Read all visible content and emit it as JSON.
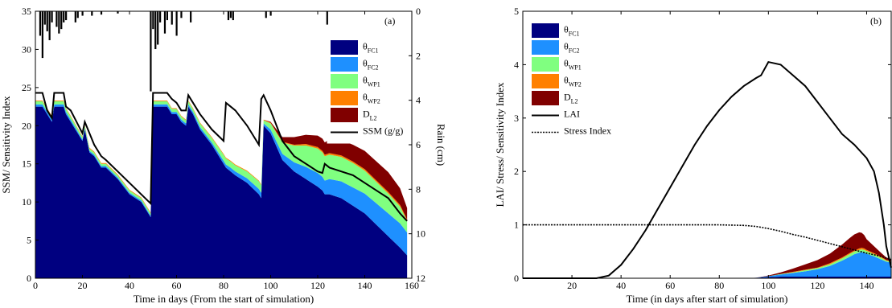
{
  "chart_data": [
    {
      "id": "a",
      "type": "area",
      "panel_label": "(a)",
      "xlabel": "Time in days (From the start of simulation)",
      "ylabel": "SSM/ Sensitivity Index",
      "y2label": "Rain (cm)",
      "xlim": [
        0,
        160
      ],
      "ylim": [
        0,
        35
      ],
      "y2lim": [
        12,
        0
      ],
      "xticks": [
        0,
        20,
        40,
        60,
        80,
        100,
        120,
        140,
        160
      ],
      "yticks": [
        0,
        5,
        10,
        15,
        20,
        25,
        30,
        35
      ],
      "y2ticks": [
        0,
        2,
        4,
        6,
        8,
        10,
        12
      ],
      "legend_position": "top-right",
      "legend": [
        {
          "base": "θ",
          "sub": "FC1",
          "color": "#000080",
          "kind": "patch"
        },
        {
          "base": "θ",
          "sub": "FC2",
          "color": "#1e90ff",
          "kind": "patch"
        },
        {
          "base": "θ",
          "sub": "WP1",
          "color": "#80ff80",
          "kind": "patch"
        },
        {
          "base": "θ",
          "sub": "WP2",
          "color": "#ff8000",
          "kind": "patch"
        },
        {
          "base": "D",
          "sub": "L2",
          "color": "#800000",
          "kind": "patch"
        },
        {
          "base": "SSM (g/g)",
          "sub": "",
          "color": "#000000",
          "kind": "line"
        }
      ],
      "x": [
        0,
        3,
        5,
        7,
        8,
        10,
        12,
        13,
        15,
        20,
        21,
        23,
        25,
        28,
        30,
        35,
        40,
        45,
        49,
        50,
        53,
        56,
        58,
        60,
        62,
        64,
        65,
        67,
        70,
        75,
        80,
        81,
        83,
        85,
        90,
        95,
        96,
        97,
        100,
        105,
        110,
        115,
        120,
        122,
        123,
        125,
        130,
        135,
        140,
        145,
        150,
        155,
        158
      ],
      "series": [
        {
          "name": "θFC1",
          "color": "#000080",
          "values": [
            22.5,
            22.5,
            21.5,
            20.5,
            22.5,
            22.5,
            22.5,
            21.5,
            20.5,
            18,
            19.5,
            16.5,
            16,
            14.5,
            14.5,
            13,
            11,
            10,
            8,
            22.5,
            22.5,
            22.5,
            21.5,
            21.5,
            20.5,
            20,
            22.5,
            21.5,
            19.5,
            17.5,
            15,
            14.5,
            14,
            13.5,
            12.5,
            11,
            10.5,
            20,
            19,
            15.5,
            14,
            13,
            12,
            11.5,
            11,
            11,
            10.5,
            9.5,
            8.5,
            7,
            5.5,
            4,
            3
          ]
        },
        {
          "name": "θFC2",
          "color": "#1e90ff",
          "values": [
            0.3,
            0.3,
            0.3,
            0.3,
            0.3,
            0.3,
            0.3,
            0.3,
            0.3,
            0.2,
            0.2,
            0.2,
            0.2,
            0.2,
            0.2,
            0.2,
            0.2,
            0.2,
            0.2,
            0.3,
            0.3,
            0.3,
            0.3,
            0.3,
            0.3,
            0.3,
            0.3,
            0.3,
            0.3,
            0.3,
            0.4,
            0.4,
            0.5,
            0.5,
            0.6,
            0.7,
            0.7,
            0.3,
            0.5,
            0.8,
            1.2,
            1.6,
            1.8,
            1.8,
            1.8,
            2,
            2.2,
            2.4,
            2.6,
            2.8,
            3,
            3.2,
            3
          ]
        },
        {
          "name": "θWP1",
          "color": "#80ff80",
          "values": [
            0.4,
            0.4,
            0.4,
            0.4,
            0.4,
            0.4,
            0.4,
            0.4,
            0.4,
            0.3,
            0.3,
            0.3,
            0.3,
            0.3,
            0.3,
            0.3,
            0.3,
            0.3,
            0.3,
            0.4,
            0.4,
            0.4,
            0.4,
            0.4,
            0.4,
            0.4,
            0.4,
            0.4,
            0.5,
            0.6,
            0.8,
            0.8,
            0.8,
            0.8,
            0.9,
            1,
            1,
            0.4,
            0.8,
            1.5,
            2.2,
            2.8,
            3.2,
            3.2,
            3.2,
            3.2,
            3.2,
            3.2,
            3,
            2.8,
            2.6,
            2.2,
            1.5
          ]
        },
        {
          "name": "θWP2",
          "color": "#ff8000",
          "values": [
            0.1,
            0.1,
            0.1,
            0.1,
            0.1,
            0.1,
            0.1,
            0.1,
            0.1,
            0.1,
            0.1,
            0.1,
            0.1,
            0.1,
            0.1,
            0.1,
            0.1,
            0.1,
            0.1,
            0.1,
            0.1,
            0.1,
            0.1,
            0.1,
            0.1,
            0.1,
            0.1,
            0.1,
            0.1,
            0.1,
            0.1,
            0.1,
            0.1,
            0.1,
            0.1,
            0.1,
            0.1,
            0.1,
            0.1,
            0.1,
            0.1,
            0.2,
            0.2,
            0.2,
            0.2,
            0.2,
            0.2,
            0.2,
            0.2,
            0.2,
            0.2,
            0.2,
            0.2
          ]
        },
        {
          "name": "DL2",
          "color": "#800000",
          "values": [
            0,
            0,
            0,
            0,
            0,
            0,
            0,
            0,
            0,
            0,
            0,
            0,
            0,
            0,
            0,
            0,
            0,
            0,
            0,
            0,
            0,
            0,
            0,
            0,
            0,
            0,
            0,
            0,
            0,
            0,
            0,
            0,
            0,
            0,
            0,
            0,
            0,
            0,
            0.1,
            0.6,
            1,
            1.2,
            1.5,
            1.6,
            1.6,
            1.8,
            2,
            2.2,
            2.4,
            2.5,
            2.6,
            2.2,
            1.5
          ]
        },
        {
          "name": "SSM (g/g)",
          "color": "#000000",
          "kind": "line",
          "values": [
            24.3,
            24.3,
            22,
            21,
            24.3,
            24.3,
            24.3,
            22.5,
            22,
            19,
            20.5,
            19,
            17.5,
            16,
            15.5,
            14,
            12.5,
            11,
            9.8,
            24.3,
            24.3,
            24.3,
            23.5,
            23,
            22,
            22,
            24,
            23,
            21.5,
            19.5,
            18,
            23,
            22.5,
            22,
            20,
            17.5,
            23.5,
            24,
            22,
            18,
            16,
            15,
            14,
            13.8,
            15,
            14.5,
            14,
            13.5,
            12.5,
            11.5,
            10.5,
            8.5,
            7.5
          ]
        },
        {
          "name": "Rain (cm)",
          "kind": "bars",
          "axis": "right",
          "x": [
            2,
            3,
            4,
            5,
            6,
            7,
            9,
            10,
            11,
            12,
            13,
            17,
            18,
            20,
            24,
            28,
            35,
            49,
            50,
            51,
            52,
            53,
            55,
            56,
            58,
            60,
            62,
            66,
            82,
            83,
            84,
            98,
            100,
            124
          ],
          "values": [
            1.1,
            2.1,
            0.6,
            0.9,
            1.3,
            0.5,
            0.7,
            1,
            0.8,
            0.5,
            0.4,
            0.5,
            0.3,
            0.2,
            0.2,
            0.15,
            0.1,
            3.6,
            0.8,
            1.7,
            1.5,
            0.5,
            1,
            0.4,
            0.6,
            1.1,
            0.3,
            0.5,
            0.4,
            0.3,
            0.4,
            0.3,
            0.2,
            0.6
          ]
        }
      ]
    },
    {
      "id": "b",
      "type": "area",
      "panel_label": "(b)",
      "xlabel": "Time (in days after start of simulation)",
      "ylabel": "LAI/ Stress/ Sensitivity Index",
      "xlim": [
        0,
        150
      ],
      "ylim": [
        0,
        5
      ],
      "xticks": [
        20,
        40,
        60,
        80,
        100,
        120,
        140
      ],
      "yticks": [
        0,
        1,
        2,
        3,
        4,
        5
      ],
      "legend_position": "top-left",
      "legend": [
        {
          "base": "θ",
          "sub": "FC1",
          "color": "#000080",
          "kind": "patch"
        },
        {
          "base": "θ",
          "sub": "FC2",
          "color": "#1e90ff",
          "kind": "patch"
        },
        {
          "base": "θ",
          "sub": "WP1",
          "color": "#80ff80",
          "kind": "patch"
        },
        {
          "base": "θ",
          "sub": "WP2",
          "color": "#ff8000",
          "kind": "patch"
        },
        {
          "base": "D",
          "sub": "L2",
          "color": "#800000",
          "kind": "patch"
        },
        {
          "base": "LAI",
          "sub": "",
          "color": "#000000",
          "kind": "line"
        },
        {
          "base": "Stress Index",
          "sub": "",
          "color": "#000000",
          "kind": "dotted"
        }
      ],
      "x": [
        0,
        90,
        95,
        100,
        105,
        110,
        115,
        120,
        125,
        130,
        133,
        135,
        137,
        138,
        139,
        140,
        143,
        146,
        148,
        150
      ],
      "series": [
        {
          "name": "θFC1",
          "color": "#000080",
          "values": [
            0,
            0,
            0.01,
            0.02,
            0.03,
            0.03,
            0.03,
            0.03,
            0.03,
            0.03,
            0.03,
            0.03,
            0.03,
            0.03,
            0.03,
            0.03,
            0.03,
            0.03,
            0.03,
            0.03
          ]
        },
        {
          "name": "θFC2",
          "color": "#1e90ff",
          "values": [
            0,
            0,
            0,
            0.02,
            0.04,
            0.07,
            0.1,
            0.14,
            0.2,
            0.3,
            0.37,
            0.42,
            0.45,
            0.46,
            0.45,
            0.43,
            0.38,
            0.32,
            0.28,
            0.26
          ]
        },
        {
          "name": "θWP1",
          "color": "#80ff80",
          "values": [
            0,
            0,
            0,
            0,
            0.01,
            0.01,
            0.02,
            0.02,
            0.03,
            0.04,
            0.05,
            0.05,
            0.05,
            0.05,
            0.05,
            0.05,
            0.04,
            0.03,
            0.02,
            0.02
          ]
        },
        {
          "name": "θWP2",
          "color": "#ff8000",
          "values": [
            0,
            0,
            0,
            0,
            0,
            0.01,
            0.01,
            0.01,
            0.02,
            0.02,
            0.02,
            0.02,
            0.03,
            0.03,
            0.03,
            0.02,
            0.02,
            0.02,
            0.01,
            0.01
          ]
        },
        {
          "name": "DL2",
          "color": "#800000",
          "values": [
            0,
            0,
            0,
            0.01,
            0.03,
            0.06,
            0.1,
            0.14,
            0.18,
            0.24,
            0.28,
            0.3,
            0.3,
            0.28,
            0.25,
            0.2,
            0.13,
            0.07,
            0.05,
            0.04
          ]
        },
        {
          "name": "LAI",
          "kind": "line",
          "x": [
            0,
            30,
            35,
            40,
            45,
            50,
            55,
            60,
            65,
            70,
            75,
            80,
            85,
            90,
            95,
            97,
            100,
            105,
            110,
            115,
            120,
            125,
            130,
            135,
            140,
            143,
            145,
            147,
            148,
            150
          ],
          "values": [
            0,
            0,
            0.05,
            0.25,
            0.55,
            0.9,
            1.3,
            1.7,
            2.1,
            2.5,
            2.85,
            3.15,
            3.4,
            3.6,
            3.75,
            3.8,
            4.05,
            4.0,
            3.8,
            3.6,
            3.3,
            3.0,
            2.7,
            2.5,
            2.25,
            2.0,
            1.6,
            1.0,
            0.6,
            0.2
          ]
        },
        {
          "name": "Stress Index",
          "kind": "dotted",
          "x": [
            0,
            60,
            80,
            90,
            95,
            100,
            105,
            110,
            115,
            120,
            125,
            130,
            135,
            140,
            145,
            150
          ],
          "values": [
            1,
            1,
            1,
            0.99,
            0.97,
            0.93,
            0.88,
            0.82,
            0.77,
            0.71,
            0.65,
            0.59,
            0.53,
            0.47,
            0.42,
            0.35
          ]
        }
      ]
    }
  ]
}
